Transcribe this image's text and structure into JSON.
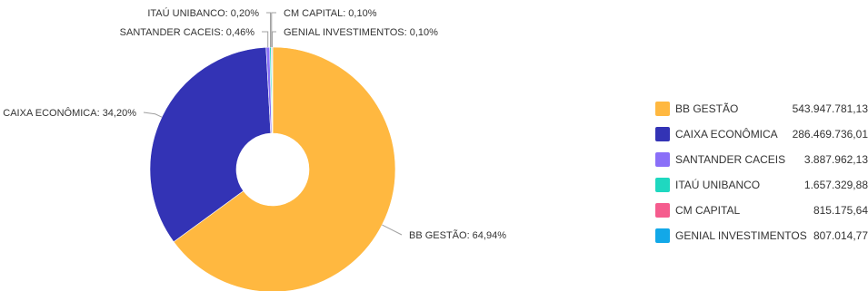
{
  "chart_data": {
    "type": "pie",
    "donut": true,
    "title": "",
    "legend_position": "right",
    "series": [
      {
        "name": "BB GESTÃO",
        "value": 543947781.13,
        "value_label": "543.947.781,13",
        "percent_label": "64,94%",
        "color": "#FFB840"
      },
      {
        "name": "CAIXA ECONÔMICA",
        "value": 286469736.01,
        "value_label": "286.469.736,01",
        "percent_label": "34,20%",
        "color": "#3333B5"
      },
      {
        "name": "SANTANDER CACEIS",
        "value": 3887962.13,
        "value_label": "3.887.962,13",
        "percent_label": "0,46%",
        "color": "#8A6FF8"
      },
      {
        "name": "ITAÚ UNIBANCO",
        "value": 1657329.88,
        "value_label": "1.657.329,88",
        "percent_label": "0,20%",
        "color": "#1FD8C0"
      },
      {
        "name": "CM CAPITAL",
        "value": 815175.64,
        "value_label": "815.175,64",
        "percent_label": "0,10%",
        "color": "#F55C8E"
      },
      {
        "name": "GENIAL INVESTIMENTOS",
        "value": 807014.77,
        "value_label": "807.014,77",
        "percent_label": "0,10%",
        "color": "#12A8E8"
      }
    ]
  }
}
